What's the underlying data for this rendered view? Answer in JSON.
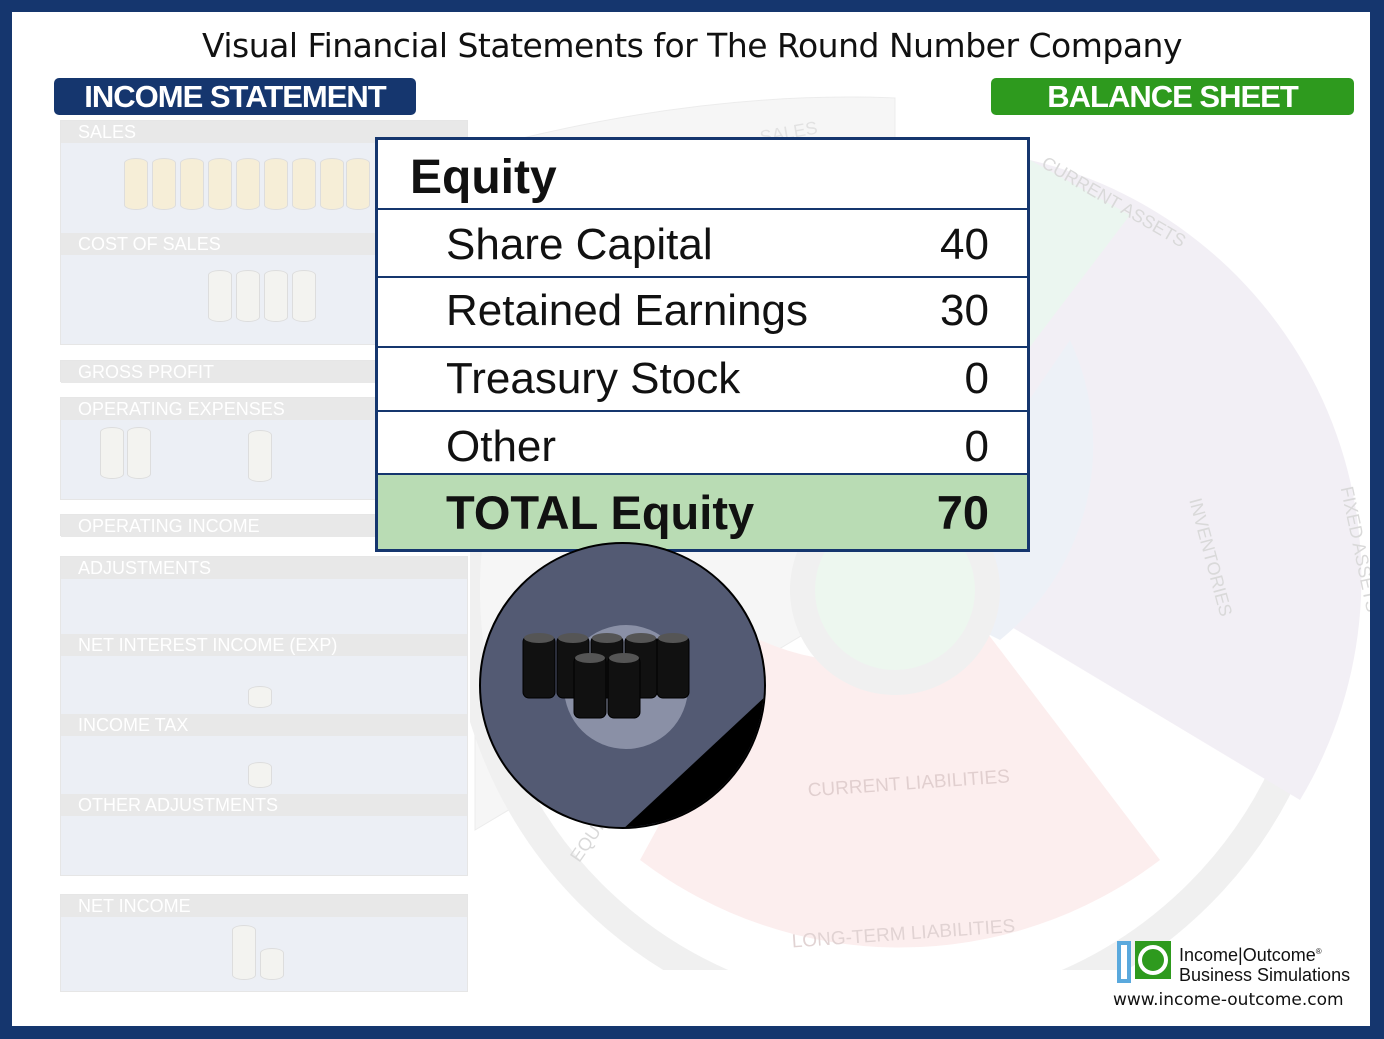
{
  "title": "Visual Financial Statements for The Round Number Company",
  "income_statement": {
    "header": "INCOME STATEMENT",
    "sections": [
      "SALES",
      "COST OF SALES",
      "GROSS PROFIT",
      "OPERATING EXPENSES",
      "OPERATING INCOME",
      "ADJUSTMENTS",
      "NET INTEREST INCOME (EXP)",
      "INCOME TAX",
      "OTHER ADJUSTMENTS",
      "NET INCOME"
    ]
  },
  "balance_sheet": {
    "header": "BALANCE SHEET",
    "wheel_labels": [
      "SALES",
      "CURRENT ASSETS",
      "FIXED ASSETS",
      "INVENTORIES",
      "CURRENT LIABILITIES",
      "LONG-TERM LIABILITIES",
      "EQUITY"
    ]
  },
  "equity_table": {
    "title": "Equity",
    "rows": [
      {
        "label": "Share Capital",
        "value": "40"
      },
      {
        "label": "Retained Earnings",
        "value": "30"
      },
      {
        "label": "Treasury Stock",
        "value": "0"
      },
      {
        "label": "Other",
        "value": "0"
      }
    ],
    "total": {
      "label": "TOTAL Equity",
      "value": "70"
    }
  },
  "logo": {
    "line1": "Income|Outcome",
    "reg": "®",
    "line2": "Business Simulations",
    "url": "www.income-outcome.com"
  },
  "colors": {
    "navy": "#15366e",
    "green": "#2e9a1e",
    "total_bg": "#b9dcb4"
  }
}
